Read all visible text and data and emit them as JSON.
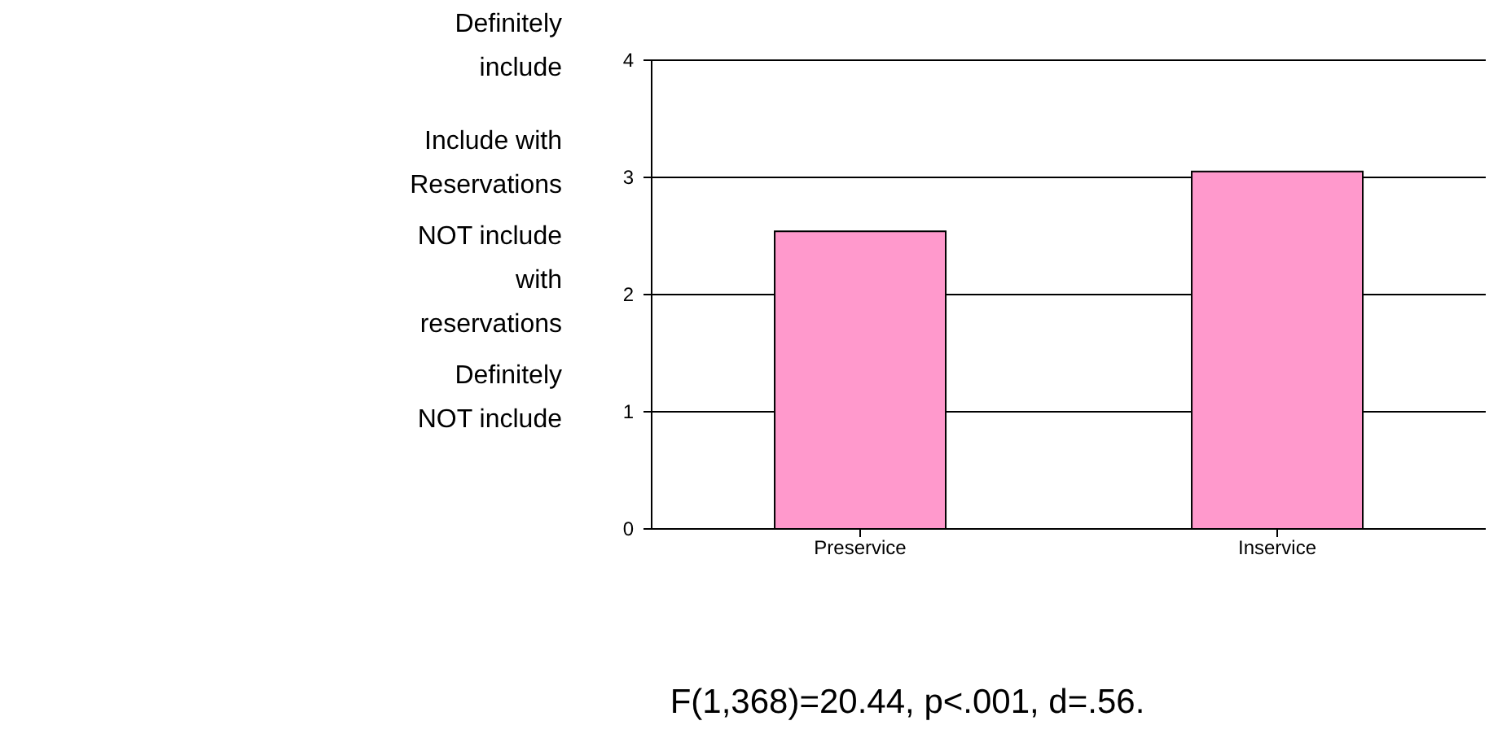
{
  "chart_data": {
    "type": "bar",
    "categories": [
      "Preservice",
      "Inservice"
    ],
    "values": [
      2.54,
      3.05
    ],
    "color": "#ff99cc",
    "ylim": [
      0,
      4
    ],
    "yticks": [
      0,
      1,
      2,
      3,
      4
    ],
    "grid": "y",
    "legend": false,
    "annotations": [
      "Definitely NOT include",
      "NOT include with reservations",
      "Include with Reservations",
      "Definitely include",
      "F(1,368)=20.44, p<.001, d=.56."
    ]
  }
}
